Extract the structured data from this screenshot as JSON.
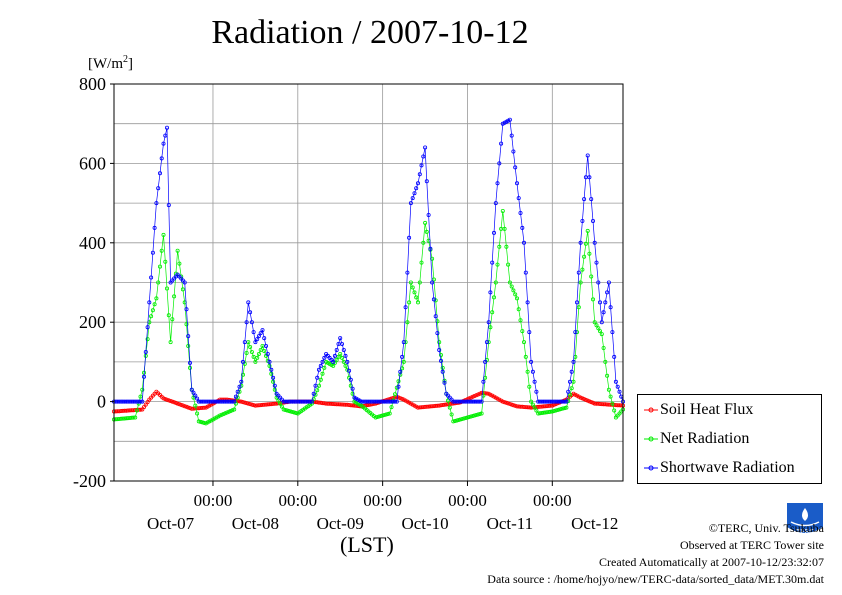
{
  "title": "Radiation / 2007-10-12",
  "y_unit_prefix": "[W/m",
  "y_unit_sup": "2",
  "y_unit_suffix": "]",
  "x_unit": "(LST)",
  "credits": {
    "copyright": "©TERC, Univ. Tsukuba",
    "observed": "Observed at TERC Tower site",
    "created": "Created Automatically at 2007-10-12/23:32:07",
    "source": "Data source : /home/hojyo/new/TERC-data/sorted_data/MET.30m.dat"
  },
  "logo_text": "TERC",
  "chart_data": {
    "type": "line",
    "title": "Radiation / 2007-10-12",
    "ylabel": "[W/m2]",
    "xlabel": "(LST)",
    "ylim": [
      -200,
      800
    ],
    "xlim": [
      0,
      144
    ],
    "yticks": [
      -200,
      0,
      200,
      400,
      600,
      800
    ],
    "x_time_ticks": [
      "00:00",
      "00:00",
      "00:00",
      "00:00",
      "00:00"
    ],
    "x_date_labels": [
      "Oct-07",
      "Oct-08",
      "Oct-09",
      "Oct-10",
      "Oct-11",
      "Oct-12"
    ],
    "grid": true,
    "legend_position": "right",
    "series": [
      {
        "name": "Soil Heat Flux",
        "color": "#ff0000",
        "keyframes": [
          [
            0,
            -25
          ],
          [
            8,
            -20
          ],
          [
            10,
            5
          ],
          [
            12,
            25
          ],
          [
            14,
            8
          ],
          [
            18,
            -5
          ],
          [
            22,
            -18
          ],
          [
            26,
            -15
          ],
          [
            28,
            -5
          ],
          [
            30,
            5
          ],
          [
            32,
            5
          ],
          [
            36,
            0
          ],
          [
            40,
            -10
          ],
          [
            46,
            -5
          ],
          [
            50,
            0
          ],
          [
            56,
            0
          ],
          [
            60,
            -5
          ],
          [
            66,
            -8
          ],
          [
            70,
            -12
          ],
          [
            74,
            -5
          ],
          [
            80,
            12
          ],
          [
            82,
            5
          ],
          [
            86,
            -15
          ],
          [
            92,
            -10
          ],
          [
            98,
            -2
          ],
          [
            104,
            22
          ],
          [
            106,
            20
          ],
          [
            110,
            0
          ],
          [
            114,
            -12
          ],
          [
            118,
            -15
          ],
          [
            124,
            -10
          ],
          [
            128,
            5
          ],
          [
            130,
            20
          ],
          [
            132,
            10
          ],
          [
            136,
            -5
          ],
          [
            144,
            -10
          ]
        ]
      },
      {
        "name": "Net Radiation",
        "color": "#00ee00",
        "keyframes": [
          [
            0,
            -45
          ],
          [
            6,
            -40
          ],
          [
            8,
            30
          ],
          [
            10,
            200
          ],
          [
            12,
            260
          ],
          [
            14,
            420
          ],
          [
            16,
            150
          ],
          [
            18,
            380
          ],
          [
            20,
            250
          ],
          [
            22,
            30
          ],
          [
            24,
            -50
          ],
          [
            26,
            -55
          ],
          [
            30,
            -35
          ],
          [
            34,
            -20
          ],
          [
            36,
            40
          ],
          [
            38,
            150
          ],
          [
            40,
            100
          ],
          [
            42,
            140
          ],
          [
            44,
            90
          ],
          [
            46,
            10
          ],
          [
            48,
            -20
          ],
          [
            52,
            -30
          ],
          [
            56,
            -5
          ],
          [
            58,
            40
          ],
          [
            60,
            100
          ],
          [
            62,
            90
          ],
          [
            64,
            120
          ],
          [
            66,
            80
          ],
          [
            68,
            0
          ],
          [
            70,
            -10
          ],
          [
            74,
            -40
          ],
          [
            78,
            -30
          ],
          [
            82,
            100
          ],
          [
            84,
            300
          ],
          [
            86,
            250
          ],
          [
            88,
            450
          ],
          [
            90,
            360
          ],
          [
            92,
            150
          ],
          [
            94,
            20
          ],
          [
            96,
            -50
          ],
          [
            100,
            -40
          ],
          [
            104,
            -30
          ],
          [
            106,
            150
          ],
          [
            108,
            300
          ],
          [
            110,
            480
          ],
          [
            112,
            300
          ],
          [
            114,
            260
          ],
          [
            116,
            150
          ],
          [
            118,
            0
          ],
          [
            120,
            -30
          ],
          [
            124,
            -25
          ],
          [
            128,
            -15
          ],
          [
            130,
            50
          ],
          [
            132,
            300
          ],
          [
            134,
            430
          ],
          [
            136,
            200
          ],
          [
            138,
            170
          ],
          [
            140,
            30
          ],
          [
            142,
            -40
          ],
          [
            144,
            -20
          ]
        ]
      },
      {
        "name": "Shortwave Radiation",
        "color": "#0000ff",
        "keyframes": [
          [
            0,
            0
          ],
          [
            8,
            0
          ],
          [
            10,
            250
          ],
          [
            12,
            500
          ],
          [
            14,
            650
          ],
          [
            15,
            690
          ],
          [
            16,
            300
          ],
          [
            18,
            320
          ],
          [
            20,
            300
          ],
          [
            22,
            30
          ],
          [
            24,
            0
          ],
          [
            34,
            0
          ],
          [
            36,
            50
          ],
          [
            38,
            250
          ],
          [
            40,
            150
          ],
          [
            42,
            180
          ],
          [
            44,
            100
          ],
          [
            46,
            20
          ],
          [
            48,
            0
          ],
          [
            56,
            0
          ],
          [
            58,
            80
          ],
          [
            60,
            120
          ],
          [
            62,
            100
          ],
          [
            64,
            160
          ],
          [
            66,
            100
          ],
          [
            68,
            10
          ],
          [
            70,
            0
          ],
          [
            80,
            0
          ],
          [
            82,
            150
          ],
          [
            84,
            500
          ],
          [
            86,
            550
          ],
          [
            88,
            640
          ],
          [
            90,
            300
          ],
          [
            92,
            130
          ],
          [
            94,
            20
          ],
          [
            96,
            0
          ],
          [
            104,
            0
          ],
          [
            106,
            200
          ],
          [
            108,
            500
          ],
          [
            110,
            700
          ],
          [
            112,
            710
          ],
          [
            114,
            550
          ],
          [
            116,
            400
          ],
          [
            118,
            100
          ],
          [
            120,
            0
          ],
          [
            128,
            0
          ],
          [
            130,
            100
          ],
          [
            132,
            400
          ],
          [
            134,
            620
          ],
          [
            136,
            400
          ],
          [
            138,
            200
          ],
          [
            140,
            300
          ],
          [
            142,
            50
          ],
          [
            144,
            0
          ]
        ]
      }
    ]
  }
}
